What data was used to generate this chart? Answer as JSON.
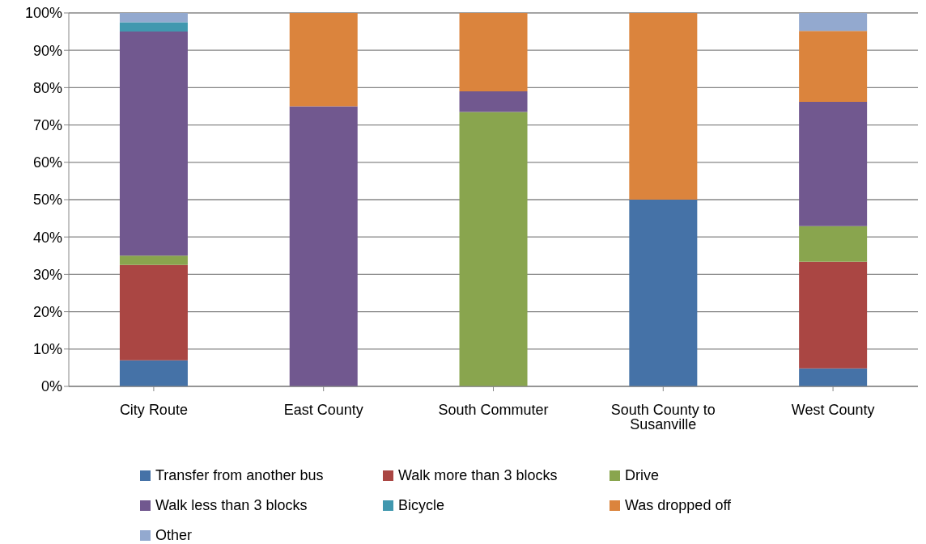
{
  "chart_data": {
    "type": "bar",
    "stacked": true,
    "categories": [
      "City Route",
      "East County",
      "South Commuter",
      "South County to Susanville",
      "West County"
    ],
    "series": [
      {
        "name": "Transfer from another bus",
        "color": "#4572a7",
        "values": [
          7,
          0,
          0,
          50,
          4.8
        ]
      },
      {
        "name": "Walk more than 3 blocks",
        "color": "#aa4643",
        "values": [
          25.5,
          0,
          0,
          0,
          28.6
        ]
      },
      {
        "name": "Drive",
        "color": "#89a54e",
        "values": [
          2.5,
          0,
          73.5,
          0,
          9.5
        ]
      },
      {
        "name": "Walk less than 3 blocks",
        "color": "#71588f",
        "values": [
          60,
          75,
          5.5,
          0,
          33.3
        ]
      },
      {
        "name": "Bicycle",
        "color": "#4198af",
        "values": [
          2.5,
          0,
          0,
          0,
          0
        ]
      },
      {
        "name": "Was dropped off",
        "color": "#db843d",
        "values": [
          0,
          25,
          21,
          50,
          19
        ]
      },
      {
        "name": "Other",
        "color": "#93a9cf",
        "values": [
          2.5,
          0,
          0,
          0,
          4.8
        ]
      }
    ],
    "ylim": [
      0,
      100
    ],
    "yticks": [
      {
        "value": 0,
        "label": "0%"
      },
      {
        "value": 10,
        "label": "10%"
      },
      {
        "value": 20,
        "label": "20%"
      },
      {
        "value": 30,
        "label": "30%"
      },
      {
        "value": 40,
        "label": "40%"
      },
      {
        "value": 50,
        "label": "50%"
      },
      {
        "value": 60,
        "label": "60%"
      },
      {
        "value": 70,
        "label": "70%"
      },
      {
        "value": 80,
        "label": "80%"
      },
      {
        "value": 90,
        "label": "90%"
      },
      {
        "value": 100,
        "label": "100%"
      }
    ],
    "grid": "y",
    "legend": "bottom"
  }
}
